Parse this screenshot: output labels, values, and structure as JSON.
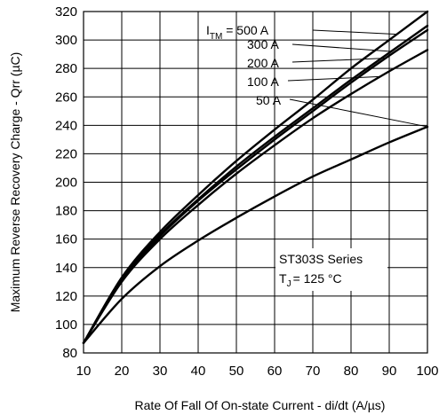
{
  "chart_data": {
    "type": "line",
    "xlabel": "Rate Of Fall Of On-state Current - di/dt (A/µs)",
    "ylabel": "Maximum Reverse Recovery Charge - Qrr (µC)",
    "xlim": [
      10,
      100
    ],
    "ylim": [
      80,
      320
    ],
    "xticks": [
      10,
      20,
      30,
      40,
      50,
      60,
      70,
      80,
      90,
      100
    ],
    "yticks": [
      80,
      100,
      120,
      140,
      160,
      180,
      200,
      220,
      240,
      260,
      280,
      300,
      320
    ],
    "grid": true,
    "x": [
      10,
      20,
      30,
      40,
      50,
      60,
      70,
      80,
      90,
      100
    ],
    "series": [
      {
        "name": "500 A",
        "values": [
          87,
          133,
          165,
          191,
          215,
          237,
          258,
          280,
          300,
          320
        ]
      },
      {
        "name": "300 A",
        "values": [
          87,
          132,
          163,
          188,
          211,
          232,
          252,
          272,
          291,
          310
        ]
      },
      {
        "name": "200 A",
        "values": [
          87,
          131,
          162,
          187,
          209,
          230,
          250,
          270,
          289,
          307
        ]
      },
      {
        "name": "100 A",
        "values": [
          87,
          130,
          160,
          184,
          206,
          226,
          245,
          262,
          278,
          293
        ]
      },
      {
        "name": "50 A",
        "values": [
          87,
          118,
          141,
          159,
          175,
          190,
          204,
          216,
          228,
          239
        ]
      }
    ],
    "legend_prefix": "I",
    "legend_sub": "TM",
    "legend_eq": " = ",
    "annotation": {
      "line1": "ST303S Series",
      "line2_prefix": "T",
      "line2_sub": "J",
      "line2_rest": "= 125 °C"
    }
  }
}
